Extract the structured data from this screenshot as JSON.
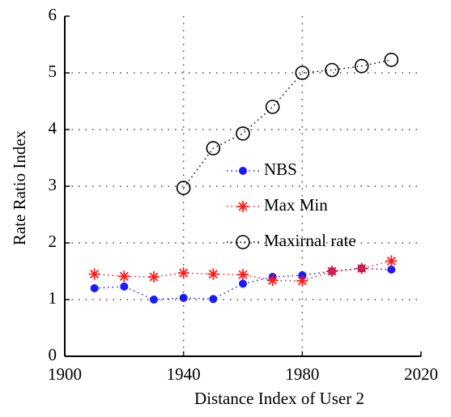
{
  "chart_data": {
    "type": "line",
    "x_label": "Distance Index of User 2",
    "y_label": "Rate Ratio Index",
    "x": [
      1910,
      1920,
      1930,
      1940,
      1950,
      1960,
      1970,
      1980,
      1990,
      2000,
      2010
    ],
    "series": [
      {
        "name": "NBS",
        "color": "#1a1aff",
        "marker": "circle-filled",
        "values": [
          1.2,
          1.23,
          1.0,
          1.03,
          1.01,
          1.28,
          1.4,
          1.43,
          1.5,
          1.55,
          1.53
        ]
      },
      {
        "name": "Max Min",
        "color": "#ff1a1a",
        "marker": "asterisk",
        "values": [
          1.45,
          1.41,
          1.4,
          1.47,
          1.45,
          1.44,
          1.34,
          1.33,
          1.5,
          1.55,
          1.68
        ]
      },
      {
        "name": "Maxirnal rate",
        "color": "#000000",
        "marker": "circle-open",
        "values": [
          null,
          null,
          null,
          2.97,
          3.67,
          3.93,
          4.4,
          5.0,
          5.05,
          5.12,
          5.23
        ]
      }
    ],
    "xlim": [
      1900,
      2020
    ],
    "xticks": [
      1900,
      1940,
      1980,
      2020
    ],
    "ylim": [
      0,
      6
    ],
    "yticks": [
      0,
      1,
      2,
      3,
      4,
      5,
      6
    ],
    "grid": true,
    "legend": "center"
  }
}
